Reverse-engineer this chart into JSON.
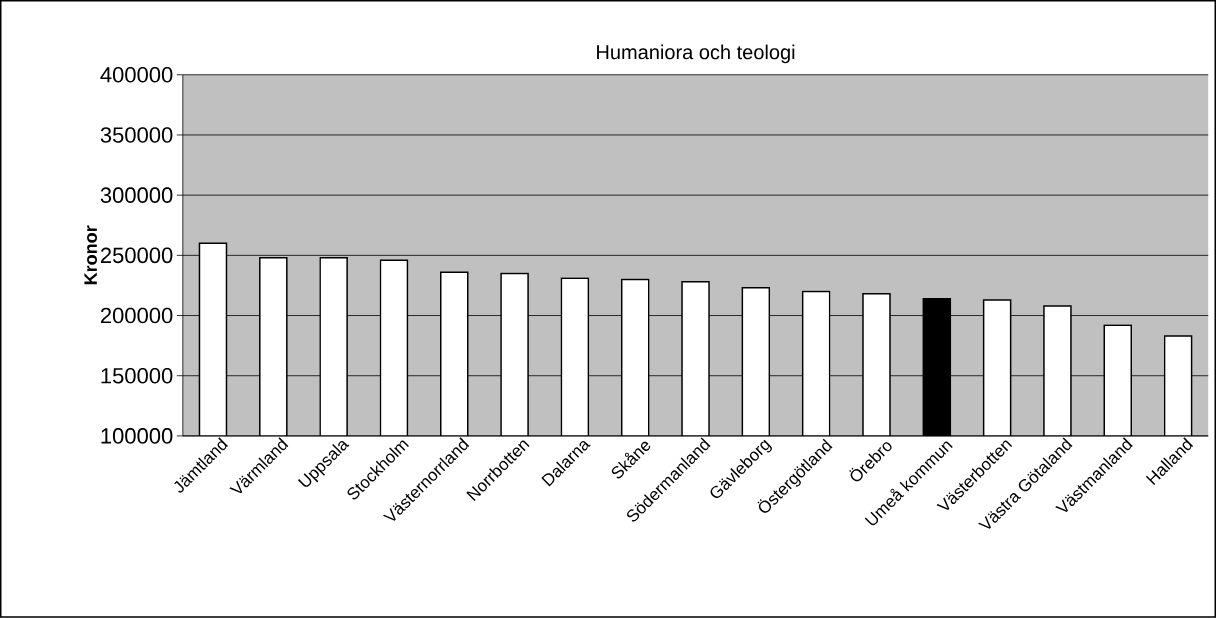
{
  "chart_data": {
    "type": "bar",
    "title": "Humaniora och teologi",
    "ylabel": "Kronor",
    "categories": [
      "Jämtland",
      "Värmland",
      "Uppsala",
      "Stockholm",
      "Västernorrland",
      "Norrbotten",
      "Dalarna",
      "Skåne",
      "Södermanland",
      "Gävleborg",
      "Östergötland",
      "Örebro",
      "Umeå kommun",
      "Västerbotten",
      "Västra Götaland",
      "Västmanland",
      "Halland"
    ],
    "values": [
      260000,
      248000,
      248000,
      246000,
      236000,
      235000,
      231000,
      230000,
      228000,
      223000,
      220000,
      218000,
      214000,
      213000,
      208000,
      192000,
      183000
    ],
    "colors": [
      "#ffffff",
      "#ffffff",
      "#ffffff",
      "#ffffff",
      "#ffffff",
      "#ffffff",
      "#ffffff",
      "#ffffff",
      "#ffffff",
      "#ffffff",
      "#ffffff",
      "#ffffff",
      "#000000",
      "#ffffff",
      "#ffffff",
      "#ffffff",
      "#ffffff"
    ],
    "ylim": [
      100000,
      400000
    ],
    "yticks": [
      100000,
      150000,
      200000,
      250000,
      300000,
      350000,
      400000
    ],
    "grid": "y"
  }
}
